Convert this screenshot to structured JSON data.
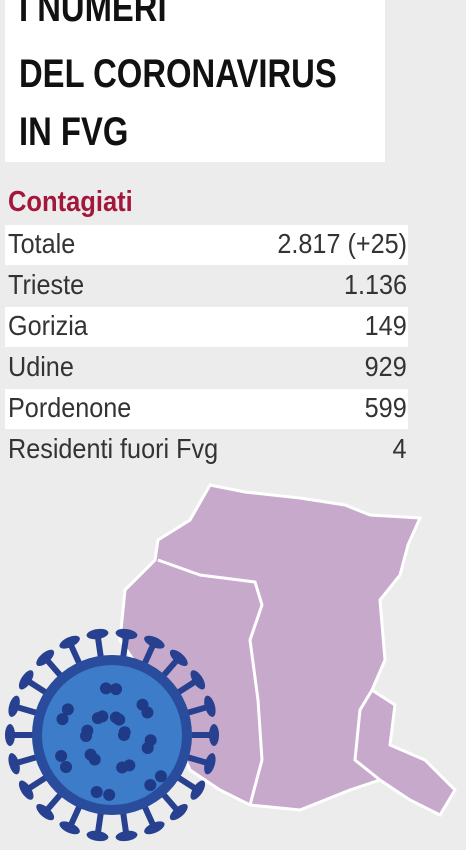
{
  "header": {
    "title_lines": [
      "I NUMERI",
      "DEL CORONAVIRUS",
      "IN FVG"
    ]
  },
  "section": {
    "heading": "Contagiati"
  },
  "table": {
    "rows": [
      [
        "Totale",
        "2.817 (+25)"
      ],
      [
        "Trieste",
        "1.136"
      ],
      [
        "Gorizia",
        "149"
      ],
      [
        "Udine",
        "929"
      ],
      [
        "Pordenone",
        "599"
      ],
      [
        "Residenti fuori Fvg",
        "4"
      ]
    ]
  }
}
